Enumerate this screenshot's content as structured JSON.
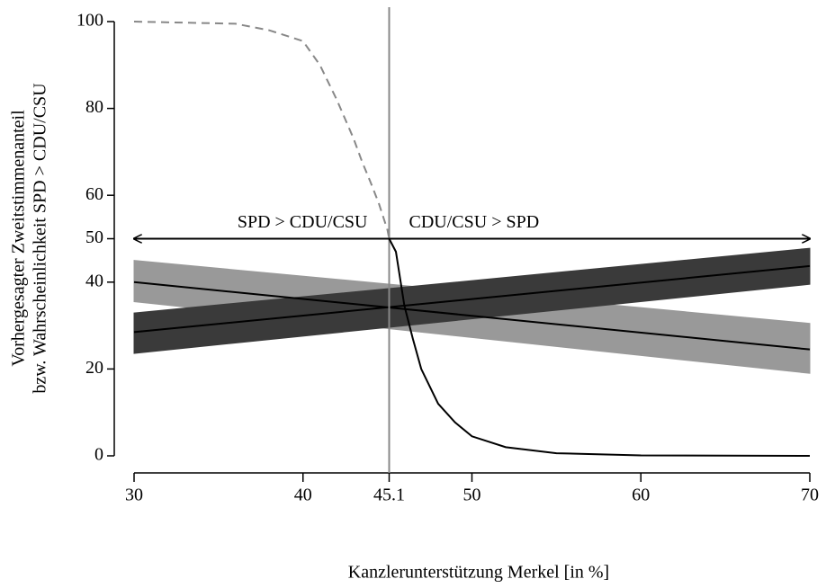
{
  "chart_data": {
    "type": "line",
    "xlabel": "Kanzlerunterstützung Merkel [in %]",
    "ylabel": [
      "Vorhergesagter Zweitstimmenanteil",
      "bzw. Wahrscheinlichkeit SPD > CDU/CSU"
    ],
    "xlim": [
      30,
      70
    ],
    "ylim": [
      0,
      100
    ],
    "xticks": [
      30,
      40,
      45.1,
      50,
      60,
      70
    ],
    "yticks": [
      0,
      20,
      40,
      50,
      60,
      80,
      100
    ],
    "reference_line_x": 45.1,
    "arrow_y": 50,
    "annotations": [
      "SPD > CDU/CSU",
      "CDU/CSU > SPD"
    ],
    "bands": [
      {
        "x": [
          30,
          70
        ],
        "values": [
          40,
          24.5
        ],
        "lower": [
          35.5,
          19
        ],
        "upper": [
          45,
          30.5
        ],
        "color": "#999999",
        "line_color": "#000000"
      },
      {
        "x": [
          30,
          70
        ],
        "values": [
          28.5,
          43.7
        ],
        "lower": [
          23.6,
          39.5
        ],
        "upper": [
          32.9,
          47.8
        ],
        "color": "#3a3a3a",
        "line_color": "#000000"
      }
    ],
    "series": [
      {
        "x": [
          30,
          36,
          38,
          40,
          41,
          42,
          43,
          43.5,
          44,
          44.5,
          45,
          45.1
        ],
        "values": [
          100,
          99.5,
          98,
          95.5,
          90,
          82,
          73,
          67.7,
          63,
          58,
          52,
          50
        ],
        "color": "#888888",
        "dashed": true
      },
      {
        "x": [
          45.1,
          45.5,
          46,
          46.5,
          47,
          48,
          49,
          50,
          52,
          55,
          60,
          70
        ],
        "values": [
          50,
          47,
          34.6,
          27,
          20,
          12,
          7.7,
          4.5,
          2,
          0.6,
          0.1,
          0
        ],
        "color": "#000000",
        "dashed": false
      }
    ]
  }
}
